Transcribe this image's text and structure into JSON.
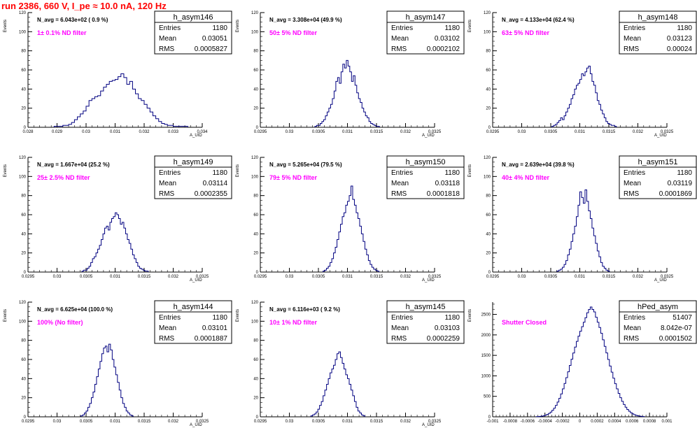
{
  "header": {
    "title": "run 2386,   660 V, I_pe ≈ 10.0 nA, 120 Hz"
  },
  "colors": {
    "title": "#ff0000",
    "histogram_line": "#000080",
    "annotation": "#ff00ff",
    "axis": "#000000"
  },
  "chart_data": [
    {
      "type": "histogram",
      "name": "h_asym146",
      "stats": {
        "entries": "1180",
        "mean": "0.03051",
        "rms": "0.0005827"
      },
      "annotation": "N_avg = 6.043e+02 ( 0.9 %)",
      "filter_label": "1± 0.1% ND filter",
      "ylabel": "Events",
      "xlabel": "A_UID",
      "xlim": [
        0.028,
        0.034
      ],
      "ylim": [
        0,
        120
      ],
      "xticks": [
        0.028,
        0.029,
        0.03,
        0.031,
        0.032,
        0.033,
        0.034
      ],
      "xtick_labels": [
        "0.028",
        "0.029",
        "0.03",
        "0.031",
        "0.032",
        "0.033",
        "0.034"
      ],
      "yticks": [
        0,
        20,
        40,
        60,
        80,
        100,
        120
      ],
      "bin_width": 0.0001,
      "counts_start": 0.0289,
      "counts": [
        1,
        1,
        1,
        2,
        2,
        3,
        5,
        8,
        11,
        14,
        17,
        22,
        28,
        30,
        32,
        33,
        38,
        42,
        45,
        48,
        49,
        50,
        53,
        56,
        52,
        45,
        48,
        40,
        35,
        30,
        28,
        24,
        20,
        16,
        12,
        9,
        6,
        4,
        3,
        2,
        2,
        1,
        1,
        1,
        1,
        1
      ]
    },
    {
      "type": "histogram",
      "name": "h_asym147",
      "stats": {
        "entries": "1180",
        "mean": "0.03102",
        "rms": "0.0002102"
      },
      "annotation": "N_avg = 3.308e+04 (49.9 %)",
      "filter_label": "50± 5% ND filter",
      "ylabel": "Events",
      "xlabel": "A_UID",
      "xlim": [
        0.0295,
        0.0325
      ],
      "ylim": [
        0,
        120
      ],
      "xticks": [
        0.0295,
        0.03,
        0.0305,
        0.031,
        0.0315,
        0.032,
        0.0325
      ],
      "xtick_labels": [
        "0.0295",
        "0.03",
        "0.0305",
        "0.031",
        "0.0315",
        "0.032",
        "0.0325"
      ],
      "yticks": [
        0,
        20,
        40,
        60,
        80,
        100,
        120
      ],
      "bin_width": 3e-05,
      "counts_start": 0.03044,
      "counts": [
        1,
        2,
        2,
        4,
        6,
        8,
        12,
        16,
        20,
        24,
        30,
        38,
        48,
        52,
        46,
        58,
        66,
        62,
        70,
        64,
        58,
        48,
        54,
        44,
        36,
        30,
        26,
        20,
        16,
        12,
        10,
        6,
        4,
        3,
        2,
        1,
        1
      ]
    },
    {
      "type": "histogram",
      "name": "h_asym148",
      "stats": {
        "entries": "1180",
        "mean": "0.03123",
        "rms": "0.00024"
      },
      "annotation": "N_avg = 4.133e+04 (62.4 %)",
      "filter_label": "63± 5% ND filter",
      "ylabel": "Events",
      "xlabel": "A_UID",
      "xlim": [
        0.0295,
        0.0325
      ],
      "ylim": [
        0,
        120
      ],
      "xticks": [
        0.0295,
        0.03,
        0.0305,
        0.031,
        0.0315,
        0.032,
        0.0325
      ],
      "xtick_labels": [
        "0.0295",
        "0.03",
        "0.0305",
        "0.031",
        "0.0315",
        "0.032",
        "0.0325"
      ],
      "yticks": [
        0,
        20,
        40,
        60,
        80,
        100,
        120
      ],
      "bin_width": 3e-05,
      "counts_start": 0.03052,
      "counts": [
        1,
        2,
        3,
        5,
        7,
        10,
        8,
        12,
        16,
        20,
        24,
        30,
        34,
        40,
        44,
        46,
        50,
        56,
        54,
        58,
        62,
        64,
        56,
        48,
        44,
        36,
        28,
        24,
        18,
        14,
        10,
        6,
        4,
        3,
        2,
        2,
        1
      ]
    },
    {
      "type": "histogram",
      "name": "h_asym149",
      "stats": {
        "entries": "1180",
        "mean": "0.03114",
        "rms": "0.0002355"
      },
      "annotation": "N_avg = 1.667e+04 (25.2 %)",
      "filter_label": "25± 2.5% ND filter",
      "ylabel": "Events",
      "xlabel": "A_UID",
      "xlim": [
        0.0295,
        0.0325
      ],
      "ylim": [
        0,
        120
      ],
      "xticks": [
        0.0295,
        0.03,
        0.0305,
        0.031,
        0.0315,
        0.032,
        0.0325
      ],
      "xtick_labels": [
        "0.0295",
        "0.03",
        "0.0305",
        "0.031",
        "0.0315",
        "0.032",
        "0.0325"
      ],
      "yticks": [
        0,
        20,
        40,
        60,
        80,
        100,
        120
      ],
      "bin_width": 3e-05,
      "counts_start": 0.03043,
      "counts": [
        1,
        2,
        2,
        4,
        6,
        10,
        14,
        16,
        20,
        24,
        28,
        34,
        40,
        46,
        48,
        44,
        52,
        56,
        58,
        62,
        60,
        56,
        50,
        52,
        46,
        40,
        34,
        30,
        24,
        18,
        14,
        10,
        6,
        4,
        3,
        2,
        1,
        1
      ]
    },
    {
      "type": "histogram",
      "name": "h_asym150",
      "stats": {
        "entries": "1180",
        "mean": "0.03118",
        "rms": "0.0001818"
      },
      "annotation": "N_avg = 5.265e+04 (79.5 %)",
      "filter_label": "79± 5% ND filter",
      "ylabel": "Events",
      "xlabel": "A_UID",
      "xlim": [
        0.0295,
        0.0325
      ],
      "ylim": [
        0,
        120
      ],
      "xticks": [
        0.0295,
        0.03,
        0.0305,
        0.031,
        0.0315,
        0.032,
        0.0325
      ],
      "xtick_labels": [
        "0.0295",
        "0.03",
        "0.0305",
        "0.031",
        "0.0315",
        "0.032",
        "0.0325"
      ],
      "yticks": [
        0,
        20,
        40,
        60,
        80,
        100,
        120
      ],
      "bin_width": 3e-05,
      "counts_start": 0.03058,
      "counts": [
        1,
        2,
        4,
        6,
        10,
        14,
        20,
        26,
        34,
        42,
        50,
        58,
        62,
        70,
        74,
        80,
        90,
        76,
        70,
        62,
        56,
        48,
        40,
        32,
        24,
        18,
        12,
        8,
        5,
        3,
        2,
        1
      ]
    },
    {
      "type": "histogram",
      "name": "h_asym151",
      "stats": {
        "entries": "1180",
        "mean": "0.03119",
        "rms": "0.0001869"
      },
      "annotation": "N_avg = 2.639e+04 (39.8 %)",
      "filter_label": "40± 4% ND filter",
      "ylabel": "Events",
      "xlabel": "A_UID",
      "xlim": [
        0.0295,
        0.0325
      ],
      "ylim": [
        0,
        120
      ],
      "xticks": [
        0.0295,
        0.03,
        0.0305,
        0.031,
        0.0315,
        0.032,
        0.0325
      ],
      "xtick_labels": [
        "0.0295",
        "0.03",
        "0.0305",
        "0.031",
        "0.0315",
        "0.032",
        "0.0325"
      ],
      "yticks": [
        0,
        20,
        40,
        60,
        80,
        100,
        120
      ],
      "bin_width": 3e-05,
      "counts_start": 0.03061,
      "counts": [
        1,
        2,
        3,
        5,
        8,
        12,
        18,
        24,
        32,
        40,
        48,
        58,
        70,
        84,
        78,
        72,
        86,
        74,
        64,
        56,
        46,
        38,
        30,
        22,
        16,
        10,
        6,
        4,
        2,
        1
      ]
    },
    {
      "type": "histogram",
      "name": "h_asym144",
      "stats": {
        "entries": "1180",
        "mean": "0.03101",
        "rms": "0.0001887"
      },
      "annotation": "N_avg = 6.625e+04 (100.0 %)",
      "filter_label": "100% (No filter)",
      "ylabel": "Events",
      "xlabel": "A_UID",
      "xlim": [
        0.0295,
        0.0325
      ],
      "ylim": [
        0,
        120
      ],
      "xticks": [
        0.0295,
        0.03,
        0.0305,
        0.031,
        0.0315,
        0.032,
        0.0325
      ],
      "xtick_labels": [
        "0.0295",
        "0.03",
        "0.0305",
        "0.031",
        "0.0315",
        "0.032",
        "0.0325"
      ],
      "yticks": [
        0,
        20,
        40,
        60,
        80,
        100,
        120
      ],
      "bin_width": 3e-05,
      "counts_start": 0.03041,
      "counts": [
        1,
        2,
        4,
        6,
        10,
        14,
        20,
        26,
        34,
        42,
        50,
        58,
        66,
        72,
        74,
        68,
        76,
        70,
        60,
        52,
        44,
        36,
        28,
        20,
        14,
        10,
        6,
        4,
        2,
        1
      ]
    },
    {
      "type": "histogram",
      "name": "h_asym145",
      "stats": {
        "entries": "1180",
        "mean": "0.03103",
        "rms": "0.0002259"
      },
      "annotation": "N_avg = 6.116e+03 ( 9.2 %)",
      "filter_label": "10± 1% ND filter",
      "ylabel": "Events",
      "xlabel": "A_UID",
      "xlim": [
        0.0295,
        0.0325
      ],
      "ylim": [
        0,
        120
      ],
      "xticks": [
        0.0295,
        0.03,
        0.0305,
        0.031,
        0.0315,
        0.032,
        0.0325
      ],
      "xtick_labels": [
        "0.0295",
        "0.03",
        "0.0305",
        "0.031",
        "0.0315",
        "0.032",
        "0.0325"
      ],
      "yticks": [
        0,
        20,
        40,
        60,
        80,
        100,
        120
      ],
      "bin_width": 3e-05,
      "counts_start": 0.03037,
      "counts": [
        1,
        2,
        3,
        5,
        8,
        12,
        16,
        22,
        28,
        34,
        40,
        46,
        50,
        54,
        60,
        66,
        68,
        62,
        56,
        50,
        44,
        40,
        34,
        28,
        22,
        16,
        10,
        6,
        4,
        2,
        1
      ]
    },
    {
      "type": "histogram",
      "name": "hPed_asym",
      "stats": {
        "entries": "51407",
        "mean": "8.042e-07",
        "rms": "0.0001502"
      },
      "annotation": "",
      "filter_label": "Shutter Closed",
      "ylabel": "Events",
      "xlabel": "",
      "xlim": [
        -0.001,
        0.001
      ],
      "ylim": [
        0,
        2800
      ],
      "xticks": [
        -0.001,
        -0.0008,
        -0.0006,
        -0.0004,
        -0.0002,
        0,
        0.0002,
        0.0004,
        0.0006,
        0.0008,
        0.001
      ],
      "xtick_labels": [
        "-0.001",
        "-0.0008",
        "-0.0006",
        "-0.0004",
        "-0.0002",
        "0",
        "0.0002",
        "0.0004",
        "0.0006",
        "0.0008",
        "0.001"
      ],
      "yticks": [
        0,
        500,
        1000,
        1500,
        2000,
        2500
      ],
      "bin_width": 2e-05,
      "counts_start": -0.0005,
      "counts": [
        4,
        6,
        10,
        16,
        26,
        40,
        58,
        84,
        116,
        160,
        212,
        280,
        360,
        452,
        560,
        682,
        816,
        956,
        1100,
        1254,
        1406,
        1558,
        1702,
        1842,
        1970,
        2090,
        2200,
        2310,
        2420,
        2540,
        2620,
        2680,
        2620,
        2560,
        2430,
        2310,
        2180,
        2040,
        1880,
        1720,
        1560,
        1400,
        1240,
        1090,
        944,
        808,
        684,
        572,
        468,
        378,
        300,
        234,
        180,
        136,
        100,
        72,
        52,
        36,
        24,
        16,
        10,
        6
      ]
    }
  ]
}
